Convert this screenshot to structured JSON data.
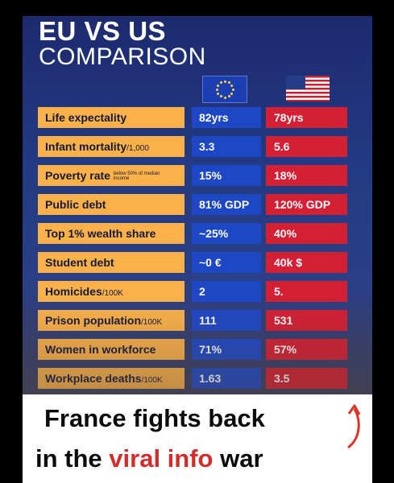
{
  "title": {
    "line1": "EU VS US",
    "line2": "COMPARISON"
  },
  "flags": {
    "left": "eu-flag-icon",
    "right": "us-flag-icon"
  },
  "rows": [
    {
      "label": "Life expectality",
      "sub": "",
      "note": "",
      "eu": "82yrs",
      "us": "78yrs"
    },
    {
      "label": "Infant mortality",
      "sub": "/1,000",
      "note": "",
      "eu": "3.3",
      "us": "5.6"
    },
    {
      "label": "Poverty rate",
      "sub": "",
      "note": "below 50% of median income",
      "eu": "15%",
      "us": "18%"
    },
    {
      "label": "Public debt",
      "sub": "",
      "note": "",
      "eu": "81% GDP",
      "us": "120% GDP"
    },
    {
      "label": "Top 1% wealth share",
      "sub": "",
      "note": "",
      "eu": "~25%",
      "us": "40%"
    },
    {
      "label": "Student debt",
      "sub": "",
      "note": "",
      "eu": "~0 €",
      "us": "40k $"
    },
    {
      "label": "Homicides",
      "sub": "/100K",
      "note": "",
      "eu": "2",
      "us": "5."
    },
    {
      "label": "Prison population",
      "sub": "/100K",
      "note": "",
      "eu": "111",
      "us": "531"
    },
    {
      "label": "Women in workforce",
      "sub": "",
      "note": "",
      "eu": "71%",
      "us": "57%"
    },
    {
      "label": "Workplace deaths",
      "sub": "/100K",
      "note": "",
      "eu": "1.63",
      "us": "3.5"
    }
  ],
  "caption": {
    "line1": "France fights back",
    "line2_a": "in the ",
    "line2_b": "viral info",
    "line2_c": " war"
  },
  "colors": {
    "label_bg": "#fbb14a",
    "eu_bg": "#1e47c6",
    "us_bg": "#d41f34",
    "highlight": "#d52b2b"
  },
  "icons": {
    "arrow": "curved-arrow-up-icon"
  }
}
